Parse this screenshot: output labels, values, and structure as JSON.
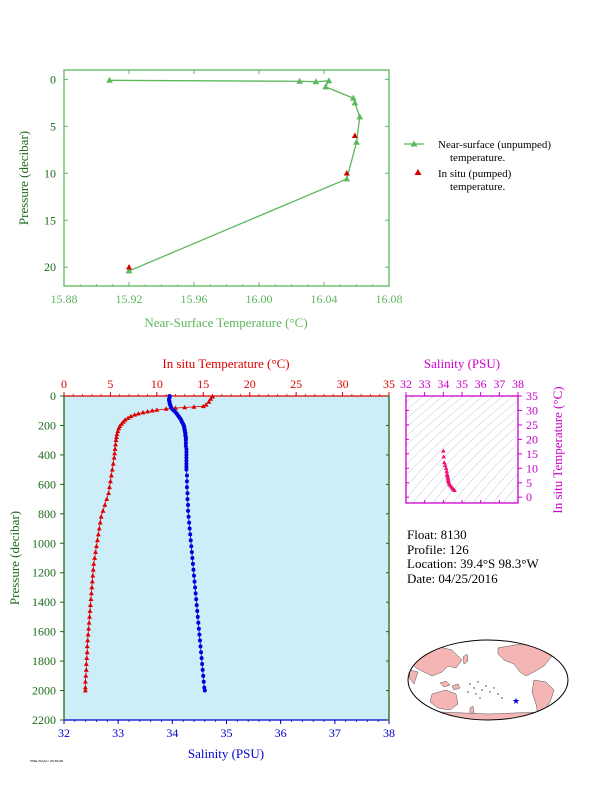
{
  "chart_data": [
    {
      "type": "line",
      "xlabel": "Near-Surface Temperature (°C)",
      "ylabel": "Pressure (decibar)",
      "xlim": [
        15.88,
        16.08
      ],
      "ylim": [
        22,
        -1
      ],
      "x_ticks": [
        "15.88",
        "15.92",
        "15.96",
        "16.00",
        "16.04",
        "16.08"
      ],
      "y_ticks": [
        "0",
        "5",
        "10",
        "15",
        "20"
      ],
      "legend_position": "right",
      "series": [
        {
          "name": "Near-surface (unpumped) temperature.",
          "color": "#5cb85c",
          "marker": "triangle",
          "points": [
            [
              15.908,
              0.1
            ],
            [
              16.025,
              0.2
            ],
            [
              16.035,
              0.25
            ],
            [
              16.043,
              0.15
            ],
            [
              16.041,
              0.8
            ],
            [
              16.058,
              2.0
            ],
            [
              16.059,
              2.5
            ],
            [
              16.062,
              4.0
            ],
            [
              16.06,
              6.7
            ],
            [
              16.054,
              10.6
            ],
            [
              15.92,
              20.4
            ]
          ]
        },
        {
          "name": "In situ (pumped) temperature.",
          "color": "#dd0000",
          "marker": "triangle",
          "points": [
            [
              16.059,
              6.0
            ],
            [
              16.054,
              10.0
            ],
            [
              15.92,
              20.0
            ]
          ]
        }
      ]
    },
    {
      "type": "scatter",
      "x_top_label": "In situ Temperature (°C)",
      "x_bottom_label": "Salinity (PSU)",
      "ylabel": "Pressure (decibar)",
      "temp_lim": [
        0,
        35
      ],
      "sal_lim": [
        32,
        38
      ],
      "ylim": [
        0,
        2200
      ],
      "temp_ticks": [
        "0",
        "5",
        "10",
        "15",
        "20",
        "25",
        "30",
        "35"
      ],
      "sal_ticks": [
        "32",
        "33",
        "34",
        "35",
        "36",
        "37",
        "38"
      ],
      "y_ticks": [
        "0",
        "200",
        "400",
        "600",
        "800",
        "1000",
        "1200",
        "1400",
        "1600",
        "1800",
        "2000",
        "2200"
      ],
      "background": "#cdeef8",
      "temperature_profile": [
        [
          16.0,
          5
        ],
        [
          15.8,
          20
        ],
        [
          15.6,
          40
        ],
        [
          15.3,
          60
        ],
        [
          15.0,
          70
        ],
        [
          14.0,
          74
        ],
        [
          13.0,
          78
        ],
        [
          12.0,
          82
        ],
        [
          11.0,
          88
        ],
        [
          10.0,
          95
        ],
        [
          9.5,
          100
        ],
        [
          9.0,
          106
        ],
        [
          8.5,
          112
        ],
        [
          8.0,
          120
        ],
        [
          7.6,
          128
        ],
        [
          7.2,
          138
        ],
        [
          6.9,
          150
        ],
        [
          6.6,
          162
        ],
        [
          6.4,
          175
        ],
        [
          6.2,
          190
        ],
        [
          6.0,
          205
        ],
        [
          5.9,
          220
        ],
        [
          5.8,
          240
        ],
        [
          5.7,
          260
        ],
        [
          5.65,
          280
        ],
        [
          5.6,
          300
        ],
        [
          5.55,
          330
        ],
        [
          5.5,
          360
        ],
        [
          5.45,
          390
        ],
        [
          5.4,
          420
        ],
        [
          5.3,
          460
        ],
        [
          5.2,
          500
        ],
        [
          5.1,
          540
        ],
        [
          5.0,
          580
        ],
        [
          4.9,
          620
        ],
        [
          4.8,
          660
        ],
        [
          4.6,
          700
        ],
        [
          4.4,
          740
        ],
        [
          4.2,
          780
        ],
        [
          4.0,
          820
        ],
        [
          3.9,
          860
        ],
        [
          3.8,
          900
        ],
        [
          3.7,
          940
        ],
        [
          3.6,
          980
        ],
        [
          3.5,
          1020
        ],
        [
          3.4,
          1060
        ],
        [
          3.3,
          1100
        ],
        [
          3.2,
          1140
        ],
        [
          3.15,
          1180
        ],
        [
          3.1,
          1220
        ],
        [
          3.05,
          1260
        ],
        [
          3.0,
          1300
        ],
        [
          2.95,
          1340
        ],
        [
          2.9,
          1380
        ],
        [
          2.85,
          1420
        ],
        [
          2.8,
          1460
        ],
        [
          2.75,
          1500
        ],
        [
          2.7,
          1540
        ],
        [
          2.65,
          1580
        ],
        [
          2.6,
          1620
        ],
        [
          2.55,
          1660
        ],
        [
          2.5,
          1700
        ],
        [
          2.5,
          1740
        ],
        [
          2.45,
          1780
        ],
        [
          2.4,
          1820
        ],
        [
          2.4,
          1860
        ],
        [
          2.35,
          1900
        ],
        [
          2.3,
          1940
        ],
        [
          2.3,
          1980
        ],
        [
          2.3,
          2000
        ]
      ],
      "salinity_profile": [
        [
          33.95,
          0
        ],
        [
          33.95,
          10
        ],
        [
          33.94,
          20
        ],
        [
          33.94,
          30
        ],
        [
          33.95,
          40
        ],
        [
          33.95,
          50
        ],
        [
          33.96,
          60
        ],
        [
          33.97,
          70
        ],
        [
          33.98,
          80
        ],
        [
          34.0,
          90
        ],
        [
          34.03,
          100
        ],
        [
          34.06,
          110
        ],
        [
          34.08,
          120
        ],
        [
          34.1,
          130
        ],
        [
          34.12,
          140
        ],
        [
          34.14,
          150
        ],
        [
          34.16,
          160
        ],
        [
          34.17,
          170
        ],
        [
          34.18,
          180
        ],
        [
          34.2,
          190
        ],
        [
          34.21,
          200
        ],
        [
          34.22,
          210
        ],
        [
          34.22,
          220
        ],
        [
          34.23,
          230
        ],
        [
          34.23,
          240
        ],
        [
          34.24,
          250
        ],
        [
          34.24,
          260
        ],
        [
          34.24,
          270
        ],
        [
          34.25,
          280
        ],
        [
          34.25,
          290
        ],
        [
          34.25,
          300
        ],
        [
          34.25,
          320
        ],
        [
          34.25,
          340
        ],
        [
          34.26,
          360
        ],
        [
          34.26,
          380
        ],
        [
          34.26,
          400
        ],
        [
          34.26,
          420
        ],
        [
          34.26,
          440
        ],
        [
          34.26,
          460
        ],
        [
          34.26,
          480
        ],
        [
          34.26,
          500
        ],
        [
          34.27,
          540
        ],
        [
          34.27,
          580
        ],
        [
          34.27,
          620
        ],
        [
          34.28,
          660
        ],
        [
          34.28,
          700
        ],
        [
          34.29,
          740
        ],
        [
          34.29,
          780
        ],
        [
          34.3,
          820
        ],
        [
          34.31,
          860
        ],
        [
          34.32,
          900
        ],
        [
          34.33,
          940
        ],
        [
          34.34,
          980
        ],
        [
          34.35,
          1020
        ],
        [
          34.36,
          1060
        ],
        [
          34.37,
          1100
        ],
        [
          34.38,
          1140
        ],
        [
          34.39,
          1180
        ],
        [
          34.4,
          1220
        ],
        [
          34.41,
          1260
        ],
        [
          34.42,
          1300
        ],
        [
          34.43,
          1340
        ],
        [
          34.44,
          1380
        ],
        [
          34.45,
          1420
        ],
        [
          34.46,
          1460
        ],
        [
          34.47,
          1500
        ],
        [
          34.48,
          1540
        ],
        [
          34.49,
          1580
        ],
        [
          34.5,
          1620
        ],
        [
          34.51,
          1660
        ],
        [
          34.52,
          1700
        ],
        [
          34.53,
          1740
        ],
        [
          34.54,
          1780
        ],
        [
          34.55,
          1820
        ],
        [
          34.56,
          1860
        ],
        [
          34.57,
          1900
        ],
        [
          34.58,
          1940
        ],
        [
          34.59,
          1980
        ],
        [
          34.6,
          2000
        ]
      ],
      "temperature_color": "#dd0000",
      "salinity_color": "#0000dd"
    },
    {
      "type": "scatter",
      "xlabel": "Salinity (PSU)",
      "ylabel": "In situ Temperature (°C)",
      "xlim": [
        32,
        38
      ],
      "ylim": [
        -2,
        35
      ],
      "x_ticks": [
        "32",
        "33",
        "34",
        "35",
        "36",
        "37",
        "38"
      ],
      "y_ticks": [
        "0",
        "5",
        "10",
        "15",
        "20",
        "25",
        "30",
        "35"
      ],
      "frame_color": "#cc00cc",
      "point_color": "#ee1177",
      "points": [
        [
          34.0,
          16.0
        ],
        [
          34.02,
          14.0
        ],
        [
          34.05,
          12.0
        ],
        [
          34.1,
          11.0
        ],
        [
          34.15,
          10.0
        ],
        [
          34.18,
          9.0
        ],
        [
          34.2,
          8.0
        ],
        [
          34.22,
          7.5
        ],
        [
          34.24,
          7.0
        ],
        [
          34.25,
          6.5
        ],
        [
          34.26,
          6.0
        ],
        [
          34.27,
          5.5
        ],
        [
          34.3,
          5.0
        ],
        [
          34.33,
          4.5
        ],
        [
          34.38,
          4.0
        ],
        [
          34.45,
          3.5
        ],
        [
          34.5,
          3.0
        ],
        [
          34.55,
          2.7
        ],
        [
          34.6,
          2.4
        ]
      ]
    }
  ],
  "float_info": {
    "float": "Float:  8130",
    "profile": "Profile:  126",
    "location": "Location:  39.4°S  98.3°W",
    "date": "Date:  04/25/2016"
  },
  "map": {
    "ocean_color": "#ffffff",
    "land_color": "#f4b5b5",
    "marker_color": "#0000ee"
  },
  "footer_text": "PMEL/NOAA / 20160426"
}
